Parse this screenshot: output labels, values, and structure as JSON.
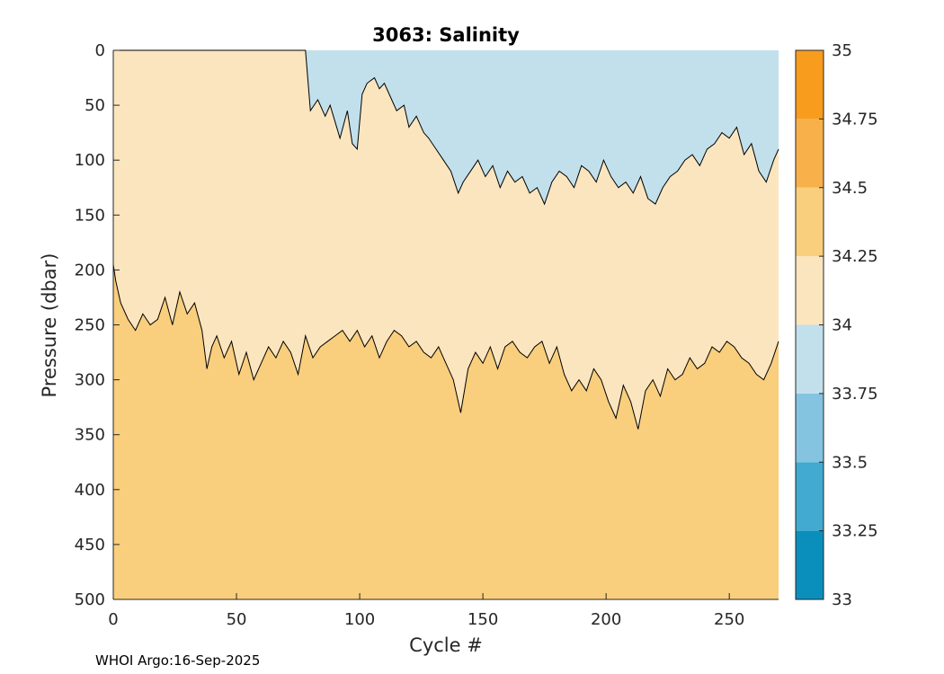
{
  "chart_data": {
    "type": "contour",
    "title": "3063:  Salinity",
    "xlabel": "Cycle #",
    "ylabel": "Pressure (dbar)",
    "xlim": [
      0,
      270
    ],
    "ylim": [
      0,
      500
    ],
    "y_reversed": true,
    "x_ticks": [
      0,
      50,
      100,
      150,
      200,
      250
    ],
    "y_ticks": [
      0,
      50,
      100,
      150,
      200,
      250,
      300,
      350,
      400,
      450,
      500
    ],
    "colorbar": {
      "levels": [
        33,
        33.25,
        33.5,
        33.75,
        34,
        34.25,
        34.5,
        34.75,
        35
      ],
      "labels": [
        "33",
        "33.25",
        "33.5",
        "33.75",
        "34",
        "34.25",
        "34.5",
        "34.75",
        "35"
      ],
      "colors": [
        "#0a8fbd",
        "#42a9d0",
        "#84c4e0",
        "#c1e0ec",
        "#fbe5bf",
        "#f9ce7d",
        "#f8b14a",
        "#f79c1d"
      ]
    },
    "colors": {
      "surface_band": "#c1e0ec",
      "mid_band": "#fbe5bf",
      "deep_band": "#f9ce7d",
      "contour_line": "#000000"
    },
    "upper_contour_34": {
      "cycle": [
        0,
        78,
        80,
        83,
        86,
        88,
        90,
        92,
        95,
        97,
        99,
        101,
        103,
        106,
        108,
        110,
        112,
        115,
        118,
        120,
        123,
        126,
        128,
        131,
        134,
        137,
        140,
        142,
        145,
        148,
        151,
        154,
        157,
        160,
        163,
        166,
        169,
        172,
        175,
        178,
        181,
        184,
        187,
        190,
        193,
        196,
        199,
        202,
        205,
        208,
        211,
        214,
        217,
        220,
        223,
        226,
        229,
        232,
        235,
        238,
        241,
        244,
        247,
        250,
        253,
        256,
        259,
        262,
        265,
        268,
        270
      ],
      "pressure": [
        0,
        0,
        55,
        45,
        60,
        50,
        65,
        80,
        55,
        85,
        90,
        40,
        30,
        25,
        35,
        30,
        40,
        55,
        50,
        70,
        60,
        75,
        80,
        90,
        100,
        110,
        130,
        120,
        110,
        100,
        115,
        105,
        125,
        110,
        120,
        115,
        130,
        125,
        140,
        120,
        110,
        115,
        125,
        105,
        110,
        120,
        100,
        115,
        125,
        120,
        130,
        115,
        135,
        140,
        125,
        115,
        110,
        100,
        95,
        105,
        90,
        85,
        75,
        80,
        70,
        95,
        85,
        110,
        120,
        100,
        90
      ]
    },
    "lower_contour_34_25": {
      "cycle": [
        0,
        1,
        3,
        6,
        9,
        12,
        15,
        18,
        21,
        24,
        27,
        30,
        33,
        36,
        38,
        40,
        42,
        45,
        48,
        51,
        54,
        57,
        60,
        63,
        66,
        69,
        72,
        75,
        78,
        81,
        84,
        87,
        90,
        93,
        96,
        99,
        102,
        105,
        108,
        111,
        114,
        117,
        120,
        123,
        126,
        129,
        132,
        135,
        138,
        141,
        144,
        147,
        150,
        153,
        156,
        159,
        162,
        165,
        168,
        171,
        174,
        177,
        180,
        183,
        186,
        189,
        192,
        195,
        198,
        201,
        204,
        207,
        210,
        213,
        216,
        219,
        222,
        225,
        228,
        231,
        234,
        237,
        240,
        243,
        246,
        249,
        252,
        255,
        258,
        261,
        264,
        267,
        270
      ],
      "pressure": [
        195,
        210,
        230,
        245,
        255,
        240,
        250,
        245,
        225,
        250,
        220,
        240,
        230,
        255,
        290,
        270,
        260,
        280,
        265,
        295,
        275,
        300,
        285,
        270,
        280,
        265,
        275,
        295,
        260,
        280,
        270,
        265,
        260,
        255,
        265,
        255,
        270,
        260,
        280,
        265,
        255,
        260,
        270,
        265,
        275,
        280,
        270,
        285,
        300,
        330,
        290,
        275,
        285,
        270,
        290,
        270,
        265,
        275,
        280,
        270,
        265,
        285,
        270,
        295,
        310,
        300,
        310,
        290,
        300,
        320,
        335,
        305,
        320,
        345,
        310,
        300,
        315,
        290,
        300,
        295,
        280,
        290,
        285,
        270,
        275,
        265,
        270,
        280,
        285,
        295,
        300,
        285,
        265
      ]
    }
  },
  "footer": {
    "credit": "WHOI Argo:16-Sep-2025"
  }
}
